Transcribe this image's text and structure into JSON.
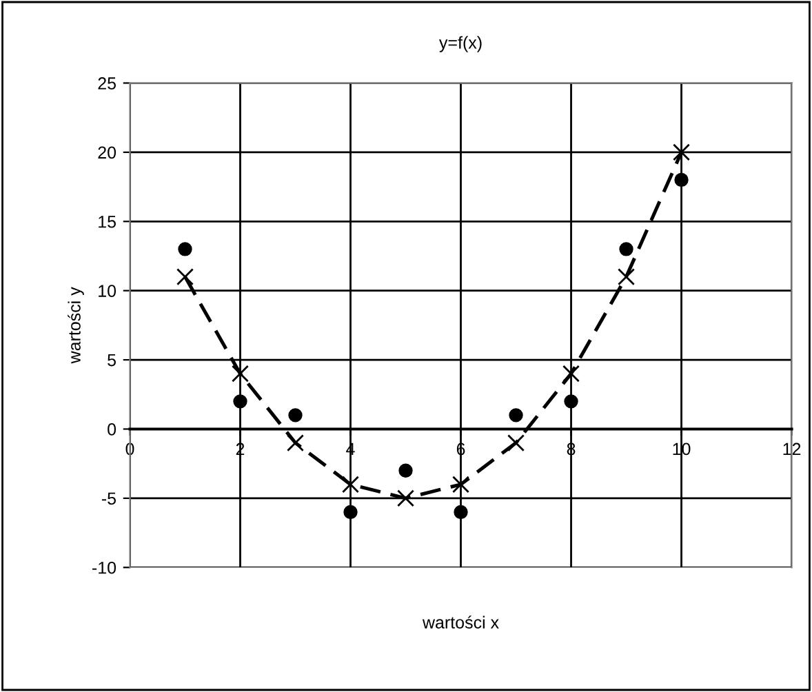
{
  "chart_data": {
    "type": "scatter",
    "title": "y=f(x)",
    "xlabel": "wartości x",
    "ylabel": "wartości y",
    "x": [
      1,
      2,
      3,
      4,
      5,
      6,
      7,
      8,
      9,
      10
    ],
    "series": [
      {
        "color": "#000000",
        "marker": "circle",
        "values": [
          13,
          2,
          1,
          -6,
          -3,
          -6,
          1,
          2,
          13,
          18
        ]
      },
      {
        "type": "line",
        "color": "#000000",
        "marker": "cross",
        "line_style": "dashed",
        "values": [
          11,
          4,
          -1,
          -4,
          -5,
          -4,
          -1,
          4,
          11,
          20
        ]
      }
    ],
    "xlim": [
      0,
      12
    ],
    "xticks": [
      0,
      2,
      4,
      6,
      8,
      10,
      12
    ],
    "ylim": [
      -10,
      25
    ],
    "yticks": [
      -10,
      -5,
      0,
      5,
      10,
      15,
      20,
      25
    ],
    "grid": true,
    "legend": false
  }
}
